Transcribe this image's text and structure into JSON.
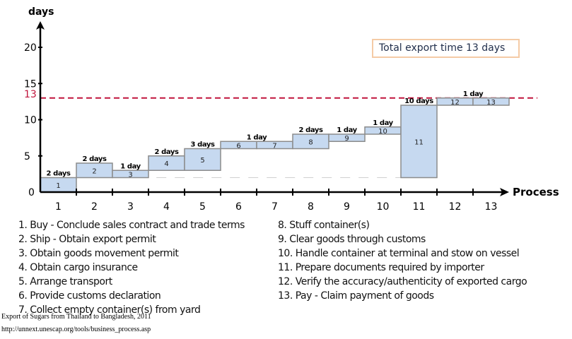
{
  "chart_data": {
    "type": "bar",
    "subtype": "floating-step",
    "title": "",
    "xlabel": "Process",
    "ylabel": "days",
    "ylim": [
      0,
      23
    ],
    "yticks": [
      0,
      5,
      10,
      15,
      20
    ],
    "categories": [
      "1",
      "2",
      "3",
      "4",
      "5",
      "6",
      "7",
      "8",
      "9",
      "10",
      "11",
      "12",
      "13"
    ],
    "bars": [
      {
        "process": 1,
        "start": 0,
        "end": 2,
        "label": "1"
      },
      {
        "process": 2,
        "start": 2,
        "end": 4,
        "label": "2"
      },
      {
        "process": 3,
        "start": 2,
        "end": 3,
        "label": "3"
      },
      {
        "process": 4,
        "start": 3,
        "end": 5,
        "label": "4"
      },
      {
        "process": 5,
        "start": 3,
        "end": 6,
        "label": "5"
      },
      {
        "process": 6,
        "start": 6,
        "end": 7,
        "label": "6"
      },
      {
        "process": 7,
        "start": 6,
        "end": 7,
        "label": "7"
      },
      {
        "process": 8,
        "start": 6,
        "end": 8,
        "label": "8"
      },
      {
        "process": 9,
        "start": 7,
        "end": 8,
        "label": "9"
      },
      {
        "process": 10,
        "start": 8,
        "end": 9,
        "label": "10"
      },
      {
        "process": 11,
        "start": 2,
        "end": 12,
        "label": "11"
      },
      {
        "process": 12,
        "start": 12,
        "end": 13,
        "label": "12"
      },
      {
        "process": 13,
        "start": 12,
        "end": 13,
        "label": "13"
      }
    ],
    "duration_labels": [
      {
        "text": "2 days",
        "process": 1,
        "y": 2
      },
      {
        "text": "2 days",
        "process": 2,
        "y": 4
      },
      {
        "text": "1 day",
        "process": 3,
        "y": 3
      },
      {
        "text": "2 days",
        "process": 4,
        "y": 5
      },
      {
        "text": "3 days",
        "process": 5,
        "y": 6
      },
      {
        "text": "1 day",
        "process": 6.5,
        "y": 7
      },
      {
        "text": "2 days",
        "process": 8,
        "y": 8
      },
      {
        "text": "1 day",
        "process": 9,
        "y": 8
      },
      {
        "text": "1 day",
        "process": 10,
        "y": 9
      },
      {
        "text": "10 days",
        "process": 11,
        "y": 12
      },
      {
        "text": "1 day",
        "process": 12.5,
        "y": 13
      }
    ],
    "reference_line": {
      "value": 13,
      "label": "13",
      "style": "dashed",
      "color": "#c0143c"
    },
    "baseline_line": {
      "value": 2,
      "from_process": 3.2,
      "to_process": 11.6,
      "style": "dashed",
      "color": "#d0d0d0"
    },
    "annotation": "Total export time 13 days",
    "colors": {
      "box_fill": "#c6d9f0",
      "box_stroke": "#8c8c8c",
      "axis": "#000000",
      "annotation_border": "#f5cba6",
      "annotation_text": "#1f2d4a"
    },
    "grid": false
  },
  "legend": {
    "left": [
      "1. Buy - Conclude sales contract and trade terms",
      "2. Ship - Obtain export permit",
      "3. Obtain goods movement permit",
      "4. Obtain cargo insurance",
      "5. Arrange transport",
      "6. Provide customs declaration",
      "7. Collect empty container(s) from yard"
    ],
    "right": [
      "8. Stuff container(s)",
      "9. Clear goods through customs",
      "10. Handle container at terminal and stow on vessel",
      "11. Prepare documents required by importer",
      "12. Verify the accuracy/authenticity of exported cargo",
      "13. Pay - Claim payment of goods"
    ]
  },
  "source": {
    "caption": "Export of Sugars from Thailand to Bangladesh, 2011",
    "url": "http://unnext.unescap.org/tools/business_process.asp"
  }
}
